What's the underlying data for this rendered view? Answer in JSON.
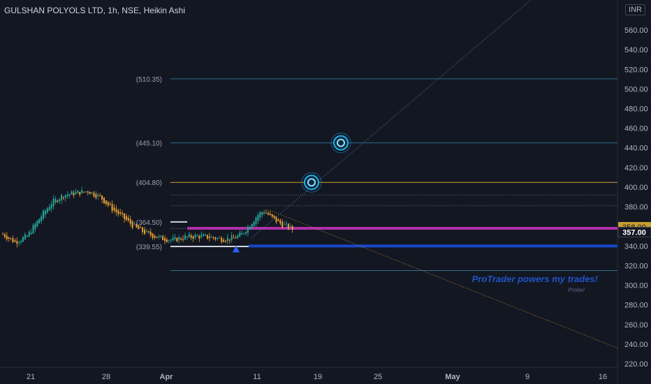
{
  "header": {
    "title": "GULSHAN POLYOLS LTD, 1h, NSE, Heikin Ashi",
    "currency": "INR"
  },
  "colors": {
    "background": "#131722",
    "up": "#26a69a",
    "down": "#f0a030",
    "magenta": "#b02fa8",
    "blue": "#1848c8",
    "gold": "#c8a030",
    "fib_line": "#2e6e8e",
    "watermark": "#1e54c8"
  },
  "chart_data": {
    "type": "candlestick",
    "symbol": "GULSHAN POLYOLS LTD",
    "interval": "1h",
    "exchange": "NSE",
    "style": "Heikin Ashi",
    "ylim": [
      220,
      570
    ],
    "y_ticks": [
      220,
      240,
      260,
      280,
      300,
      320,
      340,
      360,
      380,
      400,
      420,
      440,
      460,
      480,
      500,
      520,
      540,
      560
    ],
    "y_tick_labels": [
      "220.00",
      "240.00",
      "260.00",
      "280.00",
      "300.00",
      "320.00",
      "340.00",
      "360.00",
      "380.00",
      "400.00",
      "420.00",
      "440.00",
      "460.00",
      "480.00",
      "500.00",
      "520.00",
      "540.00",
      "560.00"
    ],
    "x_ticks": [
      {
        "label": "21",
        "bold": false
      },
      {
        "label": "28",
        "bold": false
      },
      {
        "label": "Apr",
        "bold": true
      },
      {
        "label": "11",
        "bold": false
      },
      {
        "label": "19",
        "bold": false
      },
      {
        "label": "25",
        "bold": false
      },
      {
        "label": "May",
        "bold": true
      },
      {
        "label": "9",
        "bold": false
      },
      {
        "label": "16",
        "bold": false
      }
    ],
    "price_path": [
      {
        "i": 0,
        "v": 352
      },
      {
        "i": 6,
        "v": 344
      },
      {
        "i": 12,
        "v": 350
      },
      {
        "i": 18,
        "v": 368
      },
      {
        "i": 24,
        "v": 384
      },
      {
        "i": 30,
        "v": 392
      },
      {
        "i": 36,
        "v": 394
      },
      {
        "i": 42,
        "v": 396
      },
      {
        "i": 48,
        "v": 390
      },
      {
        "i": 54,
        "v": 378
      },
      {
        "i": 60,
        "v": 368
      },
      {
        "i": 66,
        "v": 358
      },
      {
        "i": 72,
        "v": 352
      },
      {
        "i": 78,
        "v": 348
      },
      {
        "i": 84,
        "v": 346
      },
      {
        "i": 90,
        "v": 349
      },
      {
        "i": 96,
        "v": 350
      },
      {
        "i": 102,
        "v": 349
      },
      {
        "i": 108,
        "v": 347
      },
      {
        "i": 114,
        "v": 348
      },
      {
        "i": 118,
        "v": 352
      },
      {
        "i": 122,
        "v": 362
      },
      {
        "i": 126,
        "v": 372
      },
      {
        "i": 129,
        "v": 376
      },
      {
        "i": 132,
        "v": 370
      },
      {
        "i": 136,
        "v": 364
      },
      {
        "i": 140,
        "v": 360
      },
      {
        "i": 143,
        "v": 357
      }
    ],
    "levels": [
      {
        "label": "(510.35)",
        "value": 510.35,
        "style": "fib"
      },
      {
        "label": "(445.10)",
        "value": 445.1,
        "style": "fib"
      },
      {
        "label": "(404.80)",
        "value": 404.8,
        "style": "gold"
      },
      {
        "label": "",
        "value": 392,
        "style": "dotted"
      },
      {
        "label": "",
        "value": 381,
        "style": "dotted"
      },
      {
        "label": "(364.50)",
        "value": 364.5,
        "style": "white-short"
      },
      {
        "label": "(339.55)",
        "value": 339.55,
        "style": "white-short"
      },
      {
        "label": "",
        "value": 315,
        "style": "fib"
      }
    ],
    "magenta_level": 358,
    "blue_level": 340,
    "current_price_level": 357,
    "price_badges": [
      {
        "label": "358.00",
        "value": 358,
        "color": "#c8a030",
        "text_color": "#131722"
      },
      {
        "label": "357.00",
        "value": 357,
        "color": "#131722",
        "text_color": "#ffffff"
      }
    ],
    "targets": [
      {
        "value": 445.1,
        "name": "target-2"
      },
      {
        "value": 404.8,
        "name": "target-1"
      }
    ],
    "arrow_marker": {
      "value": 337,
      "type": "up"
    },
    "watermark": "ProTrader powers my trades!",
    "watermark_sub": "Probe!"
  }
}
